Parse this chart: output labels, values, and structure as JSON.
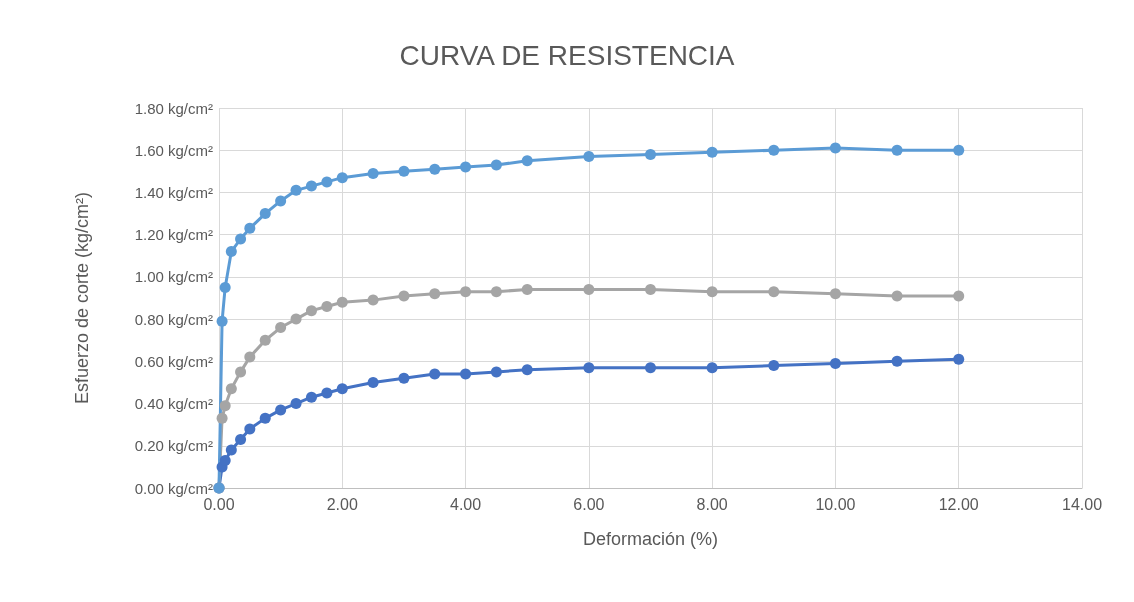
{
  "chart_data": {
    "type": "line",
    "title": "CURVA DE RESISTENCIA",
    "xlabel": "Deformación (%)",
    "ylabel": "Esfuerzo de corte (kg/cm²)",
    "x": [
      0,
      0.05,
      0.1,
      0.2,
      0.35,
      0.5,
      0.75,
      1,
      1.25,
      1.5,
      1.75,
      2,
      2.5,
      3,
      3.5,
      4,
      4.5,
      5,
      6,
      7,
      8,
      9,
      10,
      11,
      12
    ],
    "series": [
      {
        "color": "#4472c4",
        "values": [
          0,
          0.1,
          0.13,
          0.18,
          0.23,
          0.28,
          0.33,
          0.37,
          0.4,
          0.43,
          0.45,
          0.47,
          0.5,
          0.52,
          0.54,
          0.54,
          0.55,
          0.56,
          0.57,
          0.57,
          0.57,
          0.58,
          0.59,
          0.6,
          0.61
        ]
      },
      {
        "color": "#a5a5a5",
        "values": [
          0,
          0.33,
          0.39,
          0.47,
          0.55,
          0.62,
          0.7,
          0.76,
          0.8,
          0.84,
          0.86,
          0.88,
          0.89,
          0.91,
          0.92,
          0.93,
          0.93,
          0.94,
          0.94,
          0.94,
          0.93,
          0.93,
          0.92,
          0.91,
          0.91
        ]
      },
      {
        "color": "#5b9bd5",
        "values": [
          0,
          0.79,
          0.95,
          1.12,
          1.18,
          1.23,
          1.3,
          1.36,
          1.41,
          1.43,
          1.45,
          1.47,
          1.49,
          1.5,
          1.51,
          1.52,
          1.53,
          1.55,
          1.57,
          1.58,
          1.59,
          1.6,
          1.61,
          1.6,
          1.6
        ]
      }
    ],
    "xlim": [
      0,
      14
    ],
    "xticks": [
      {
        "value": 0,
        "label": "0.00"
      },
      {
        "value": 2,
        "label": "2.00"
      },
      {
        "value": 4,
        "label": "4.00"
      },
      {
        "value": 6,
        "label": "6.00"
      },
      {
        "value": 8,
        "label": "8.00"
      },
      {
        "value": 10,
        "label": "10.00"
      },
      {
        "value": 12,
        "label": "12.00"
      },
      {
        "value": 14,
        "label": "14.00"
      }
    ],
    "ylim": [
      0,
      1.8
    ],
    "yticks": [
      {
        "value": 0,
        "label": "0.00 kg/cm²"
      },
      {
        "value": 0.2,
        "label": "0.20 kg/cm²"
      },
      {
        "value": 0.4,
        "label": "0.40 kg/cm²"
      },
      {
        "value": 0.6,
        "label": "0.60 kg/cm²"
      },
      {
        "value": 0.8,
        "label": "0.80 kg/cm²"
      },
      {
        "value": 1,
        "label": "1.00 kg/cm²"
      },
      {
        "value": 1.2,
        "label": "1.20 kg/cm²"
      },
      {
        "value": 1.4,
        "label": "1.40 kg/cm²"
      },
      {
        "value": 1.6,
        "label": "1.60 kg/cm²"
      },
      {
        "value": 1.8,
        "label": "1.80 kg/cm²"
      }
    ],
    "grid": true,
    "marker": "circle",
    "line_style": "solid"
  }
}
